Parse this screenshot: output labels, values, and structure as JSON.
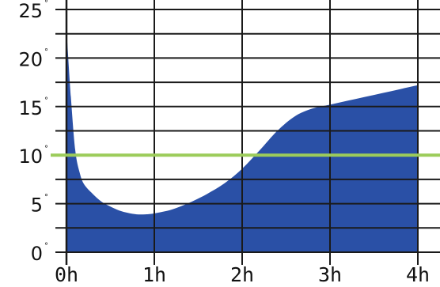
{
  "chart_data": {
    "type": "area",
    "title": "",
    "xlabel": "",
    "ylabel": "",
    "x_tick_labels": [
      "0h",
      "1h",
      "2h",
      "3h",
      "4h"
    ],
    "y_tick_labels": [
      "0",
      "5",
      "10",
      "15",
      "20",
      "25"
    ],
    "y_tick_suffix": "°",
    "xlim": [
      0,
      4
    ],
    "ylim": [
      0,
      25
    ],
    "grid": true,
    "series": [
      {
        "color": "#2a50a6",
        "x": [
          0,
          0.05,
          0.1,
          0.15,
          0.2,
          0.3,
          0.4,
          0.5,
          0.6,
          0.7,
          0.8,
          0.9,
          1.0,
          1.2,
          1.4,
          1.6,
          1.8,
          2.0,
          2.2,
          2.4,
          2.6,
          2.8,
          3.0,
          3.2,
          3.4,
          3.6,
          3.8,
          4.0
        ],
        "values": [
          23,
          16,
          10.5,
          8.2,
          7,
          6,
          5.2,
          4.7,
          4.3,
          4.05,
          3.9,
          3.9,
          4.0,
          4.4,
          5.1,
          6.0,
          7.1,
          8.6,
          10.5,
          12.5,
          14.0,
          14.8,
          15.2,
          15.6,
          16.0,
          16.4,
          16.8,
          17.2
        ]
      }
    ],
    "threshold": {
      "value": 10,
      "color": "#9ccc5a"
    }
  }
}
